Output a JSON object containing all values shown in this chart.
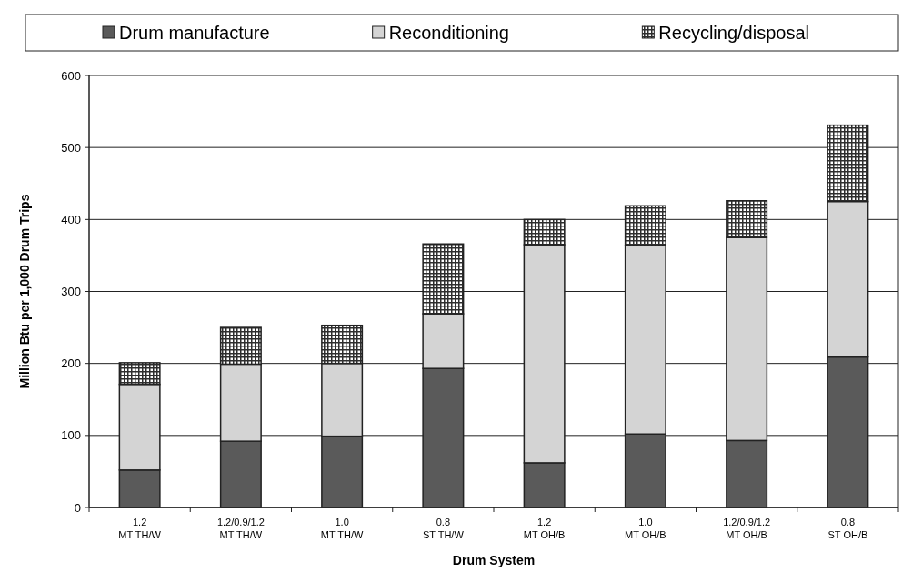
{
  "chart_data": {
    "type": "bar",
    "stacked": true,
    "xlabel": "Drum System",
    "ylabel": "Million Btu per 1,000 Drum Trips",
    "categories": [
      "1.2\nMT TH/W",
      "1.2/0.9/1.2\nMT TH/W",
      "1.0\nMT TH/W",
      "0.8\nST TH/W",
      "1.2\nMT OH/B",
      "1.0\nMT OH/B",
      "1.2/0.9/1.2\nMT OH/B",
      "0.8\nST OH/B"
    ],
    "series": [
      {
        "name": "Drum manufacture",
        "color": "#5a5a5a",
        "values": [
          52,
          92,
          99,
          193,
          62,
          102,
          93,
          209
        ]
      },
      {
        "name": "Reconditioning",
        "color": "#d4d4d4",
        "values": [
          119,
          107,
          101,
          76,
          303,
          262,
          282,
          216
        ]
      },
      {
        "name": "Recycling/disposal",
        "color": "#2e2e2e",
        "values": [
          30,
          51,
          53,
          97,
          35,
          55,
          51,
          106
        ]
      }
    ],
    "ylim": [
      0,
      600
    ],
    "yticks": [
      0,
      100,
      200,
      300,
      400,
      500,
      600
    ],
    "grid": "y",
    "legend": "top"
  }
}
